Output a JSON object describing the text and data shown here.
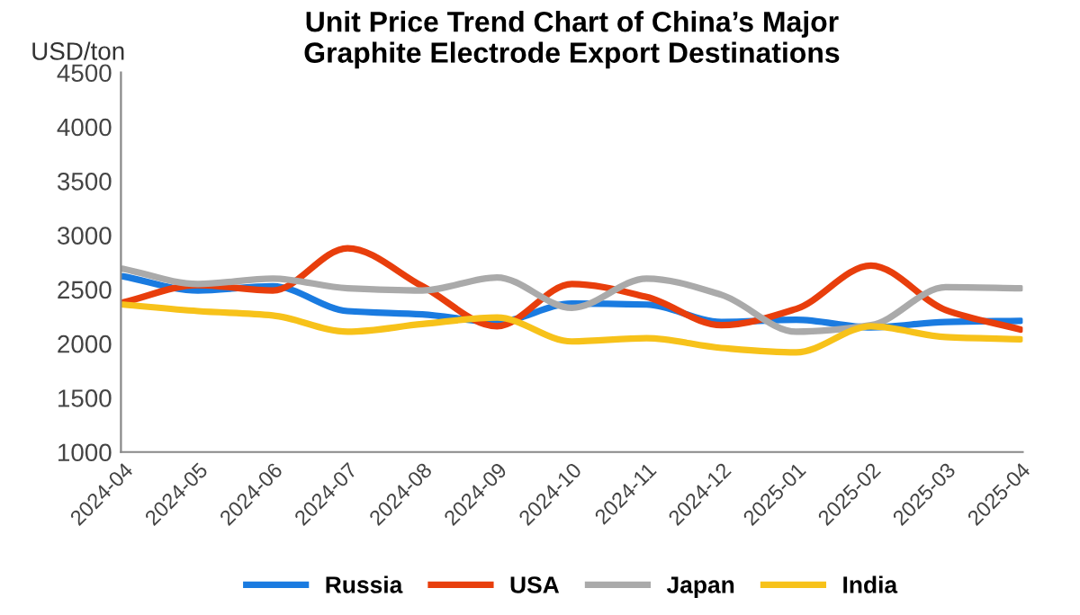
{
  "chart_data": {
    "type": "line",
    "title": "Unit Price Trend Chart of China’s Major\nGraphite Electrode Export Destinations",
    "ylabel": "USD/ton",
    "categories": [
      "2024-04",
      "2024-05",
      "2024-06",
      "2024-07",
      "2024-08",
      "2024-09",
      "2024-10",
      "2024-11",
      "2024-12",
      "2025-01",
      "2025-02",
      "2025-03",
      "2025-04"
    ],
    "series": [
      {
        "name": "Russia",
        "color": "#1a7be0",
        "values": [
          2620,
          2490,
          2530,
          2300,
          2270,
          2200,
          2370,
          2360,
          2200,
          2220,
          2150,
          2200,
          2210
        ]
      },
      {
        "name": "USA",
        "color": "#e83e0c",
        "values": [
          2380,
          2540,
          2490,
          2880,
          2530,
          2160,
          2550,
          2430,
          2170,
          2320,
          2720,
          2310,
          2130
        ]
      },
      {
        "name": "Japan",
        "color": "#aaaaaa",
        "values": [
          2690,
          2550,
          2600,
          2510,
          2490,
          2610,
          2330,
          2600,
          2450,
          2110,
          2170,
          2520,
          2510
        ]
      },
      {
        "name": "India",
        "color": "#f7c21a",
        "values": [
          2360,
          2300,
          2260,
          2110,
          2180,
          2240,
          2020,
          2050,
          1960,
          1920,
          2160,
          2060,
          2040
        ]
      }
    ],
    "ylim": [
      1000,
      4500
    ],
    "yticks": [
      1000,
      1500,
      2000,
      2500,
      3000,
      3500,
      4000,
      4500
    ],
    "grid": false,
    "legend": "bottom",
    "marker": "none",
    "line_style": "solid"
  }
}
